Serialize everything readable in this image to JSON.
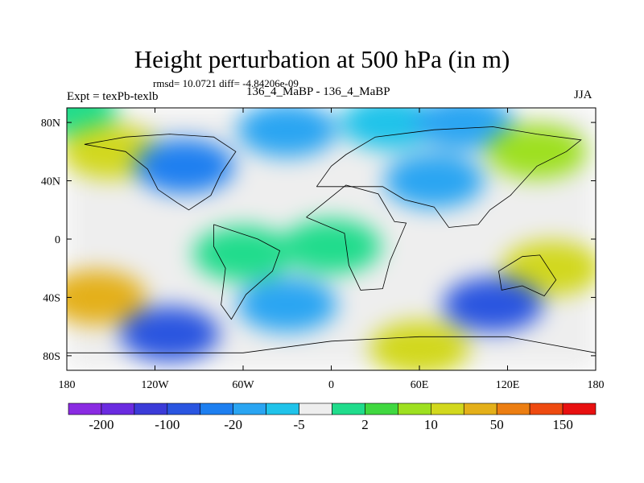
{
  "chart_data": {
    "type": "heatmap",
    "title": "Height perturbation at 500 hPa (in m)",
    "stats_line": "rmsd= 10.0721 diff= -4.84206e-09",
    "left_label": "Expt = texPb-texlb",
    "center_label": "136_4_MaBP - 136_4_MaBP",
    "right_label": "JJA",
    "x_ticks": [
      {
        "value": -180,
        "label": "180"
      },
      {
        "value": -120,
        "label": "120W"
      },
      {
        "value": -60,
        "label": "60W"
      },
      {
        "value": 0,
        "label": "0"
      },
      {
        "value": 60,
        "label": "60E"
      },
      {
        "value": 120,
        "label": "120E"
      },
      {
        "value": 180,
        "label": "180"
      }
    ],
    "y_ticks": [
      {
        "value": 80,
        "label": "80N"
      },
      {
        "value": 40,
        "label": "40N"
      },
      {
        "value": 0,
        "label": "0"
      },
      {
        "value": -40,
        "label": "40S"
      },
      {
        "value": -80,
        "label": "80S"
      }
    ],
    "xlim": [
      -180,
      180
    ],
    "ylim": [
      -90,
      90
    ],
    "colorbar": {
      "colors": [
        "#8a2be2",
        "#6a2be0",
        "#3b3bd8",
        "#2a55e0",
        "#1e7ff0",
        "#2aa5f2",
        "#20c3ea",
        "#eeeeee",
        "#20dc8c",
        "#40d840",
        "#9ee020",
        "#d2d81e",
        "#e4b01a",
        "#ec7e12",
        "#ee4a10",
        "#e81010"
      ],
      "tick_labels": [
        {
          "boundary": 1,
          "label": "-200"
        },
        {
          "boundary": 3,
          "label": "-100"
        },
        {
          "boundary": 5,
          "label": "-20"
        },
        {
          "boundary": 7,
          "label": "-5"
        },
        {
          "boundary": 9,
          "label": "2"
        },
        {
          "boundary": 11,
          "label": "10"
        },
        {
          "boundary": 13,
          "label": "50"
        },
        {
          "boundary": 15,
          "label": "150"
        }
      ]
    },
    "field": [
      {
        "lon": -180,
        "lat": 90,
        "level": 8
      },
      {
        "lon": -150,
        "lat": 60,
        "level": 11
      },
      {
        "lon": -100,
        "lat": 50,
        "level": 4
      },
      {
        "lon": -30,
        "lat": 75,
        "level": 5
      },
      {
        "lon": 40,
        "lat": 80,
        "level": 6
      },
      {
        "lon": 90,
        "lat": 80,
        "level": 5
      },
      {
        "lon": 140,
        "lat": 60,
        "level": 10
      },
      {
        "lon": 70,
        "lat": 40,
        "level": 5
      },
      {
        "lon": -20,
        "lat": 20,
        "level": 7
      },
      {
        "lon": -140,
        "lat": 20,
        "level": 7
      },
      {
        "lon": -60,
        "lat": -10,
        "level": 8
      },
      {
        "lon": 0,
        "lat": -5,
        "level": 8
      },
      {
        "lon": -160,
        "lat": -40,
        "level": 12
      },
      {
        "lon": 150,
        "lat": -20,
        "level": 11
      },
      {
        "lon": -30,
        "lat": -45,
        "level": 5
      },
      {
        "lon": 110,
        "lat": -45,
        "level": 3
      },
      {
        "lon": -110,
        "lat": -65,
        "level": 3
      },
      {
        "lon": 60,
        "lat": -75,
        "level": 11
      }
    ]
  }
}
